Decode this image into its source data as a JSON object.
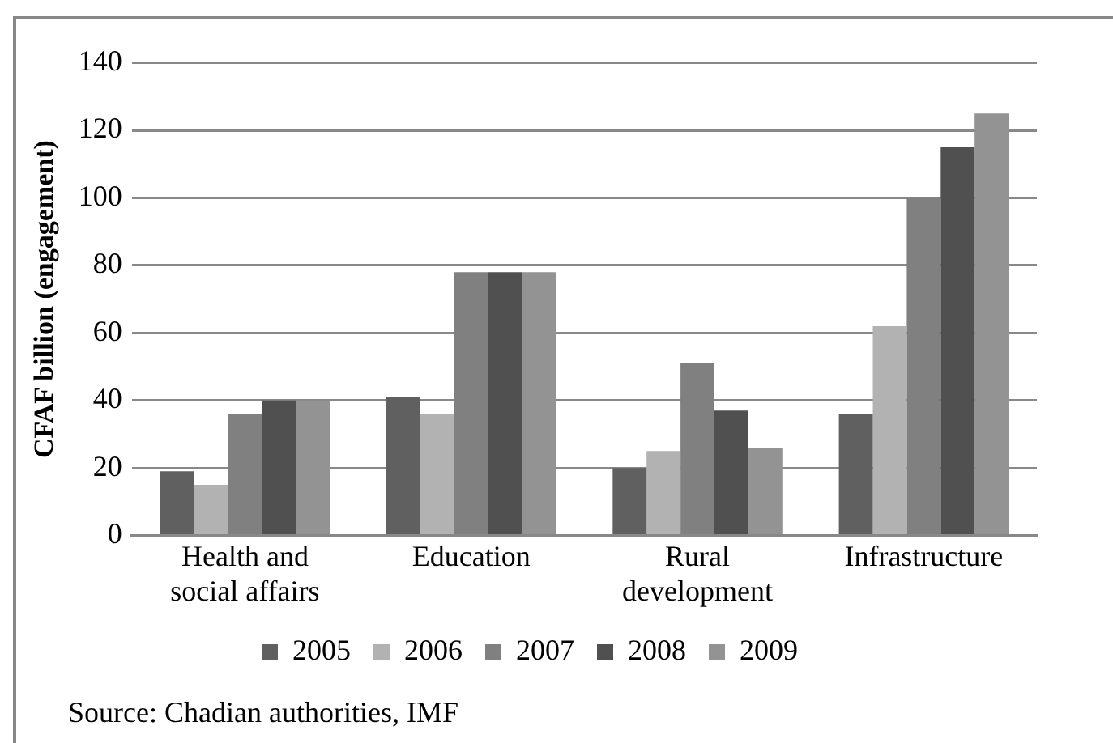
{
  "chart_data": {
    "type": "bar",
    "ylabel": "CFAF billion (engagement)",
    "categories": [
      "Health and social affairs",
      "Education",
      "Rural development",
      "Infrastructure"
    ],
    "series": [
      {
        "name": "2005",
        "color": "#606060",
        "values": [
          19,
          41,
          20,
          36
        ]
      },
      {
        "name": "2006",
        "color": "#b2b2b2",
        "values": [
          15,
          36,
          25,
          62
        ]
      },
      {
        "name": "2007",
        "color": "#808080",
        "values": [
          36,
          78,
          51,
          100
        ]
      },
      {
        "name": "2008",
        "color": "#505050",
        "values": [
          40,
          78,
          37,
          115
        ]
      },
      {
        "name": "2009",
        "color": "#939393",
        "values": [
          40,
          78,
          26,
          125
        ]
      }
    ],
    "ylim": [
      0,
      140
    ],
    "yticks": [
      0,
      20,
      40,
      60,
      80,
      100,
      120,
      140
    ],
    "grid": "y",
    "legend": "bottom",
    "annotations": [
      "Source: Chadian authorities, IMF"
    ]
  }
}
